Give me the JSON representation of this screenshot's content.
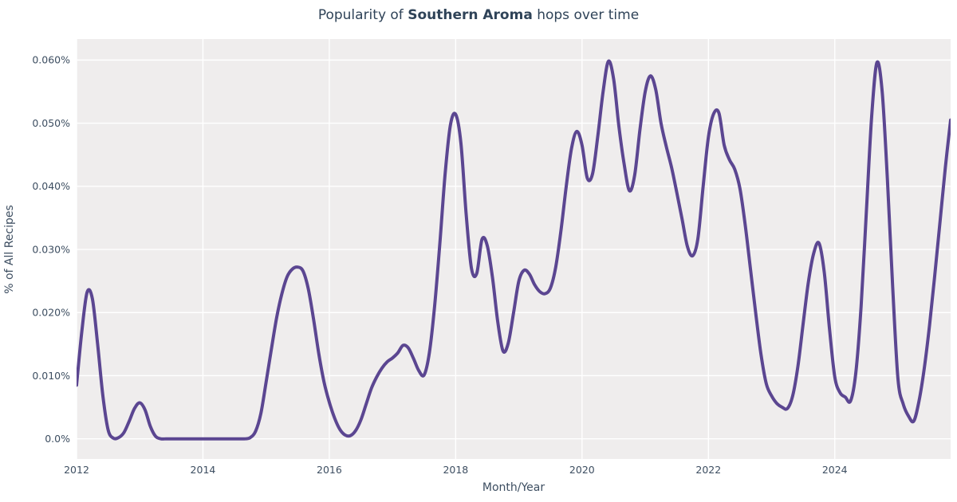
{
  "title": {
    "prefix": "Popularity of ",
    "emphasis": "Southern Aroma",
    "suffix": " hops over time"
  },
  "colors": {
    "line": "#5b4691",
    "plot_bg": "#efeded",
    "grid": "#ffffff",
    "tick_text": "#3d4e61",
    "title_text": "#2f4358",
    "figure_bg": "#ffffff"
  },
  "chart_data": {
    "type": "line",
    "title": "Popularity of Southern Aroma hops over time",
    "xlabel": "Month/Year",
    "ylabel": "% of All Recipes",
    "frequency": "monthly",
    "x_start": "2012-01",
    "x_end": "2025-11",
    "unit": "% of all recipes",
    "grid": true,
    "legend": false,
    "ylim": [
      0,
      0.0625
    ],
    "y_ticks": [
      {
        "value": 0.0,
        "label": "0.0%"
      },
      {
        "value": 0.01,
        "label": "0.010%"
      },
      {
        "value": 0.02,
        "label": "0.020%"
      },
      {
        "value": 0.03,
        "label": "0.030%"
      },
      {
        "value": 0.04,
        "label": "0.040%"
      },
      {
        "value": 0.05,
        "label": "0.050%"
      },
      {
        "value": 0.06,
        "label": "0.060%"
      }
    ],
    "x_ticks": [
      {
        "year": 2012,
        "label": "2012"
      },
      {
        "year": 2014,
        "label": "2014"
      },
      {
        "year": 2016,
        "label": "2016"
      },
      {
        "year": 2018,
        "label": "2018"
      },
      {
        "year": 2020,
        "label": "2020"
      },
      {
        "year": 2022,
        "label": "2022"
      },
      {
        "year": 2024,
        "label": "2024"
      }
    ],
    "values": [
      0.0085,
      0.017,
      0.0232,
      0.0222,
      0.015,
      0.0068,
      0.0014,
      0.0001,
      0.0002,
      0.001,
      0.0028,
      0.0048,
      0.0057,
      0.0046,
      0.002,
      0.0004,
      0.0,
      0.0,
      0.0,
      0.0,
      0.0,
      0.0,
      0.0,
      0.0,
      0.0,
      0.0,
      0.0,
      0.0,
      0.0,
      0.0,
      0.0,
      0.0,
      0.0,
      0.0002,
      0.0012,
      0.004,
      0.009,
      0.0142,
      0.0192,
      0.023,
      0.0257,
      0.0269,
      0.0272,
      0.0266,
      0.0238,
      0.019,
      0.0135,
      0.009,
      0.0058,
      0.0033,
      0.0015,
      0.0006,
      0.0005,
      0.0013,
      0.003,
      0.0055,
      0.008,
      0.0098,
      0.0112,
      0.0122,
      0.0128,
      0.0136,
      0.0148,
      0.0144,
      0.0127,
      0.0108,
      0.0101,
      0.0136,
      0.021,
      0.031,
      0.042,
      0.0497,
      0.0514,
      0.0468,
      0.0355,
      0.027,
      0.0262,
      0.0316,
      0.0306,
      0.0255,
      0.0185,
      0.0139,
      0.0152,
      0.02,
      0.025,
      0.0267,
      0.0261,
      0.0244,
      0.0233,
      0.023,
      0.0239,
      0.0272,
      0.033,
      0.04,
      0.046,
      0.0487,
      0.0465,
      0.0413,
      0.042,
      0.048,
      0.055,
      0.0598,
      0.057,
      0.0495,
      0.0435,
      0.0393,
      0.0418,
      0.049,
      0.055,
      0.0575,
      0.0553,
      0.05,
      0.0463,
      0.043,
      0.039,
      0.0348,
      0.0305,
      0.029,
      0.0317,
      0.04,
      0.0478,
      0.0515,
      0.0516,
      0.0465,
      0.0442,
      0.0427,
      0.0396,
      0.0338,
      0.0268,
      0.0198,
      0.0133,
      0.0087,
      0.0068,
      0.0056,
      0.005,
      0.0048,
      0.0068,
      0.0115,
      0.0183,
      0.0249,
      0.0294,
      0.031,
      0.0264,
      0.0174,
      0.0098,
      0.0073,
      0.0066,
      0.006,
      0.0105,
      0.021,
      0.036,
      0.051,
      0.0596,
      0.055,
      0.041,
      0.024,
      0.0095,
      0.0055,
      0.0036,
      0.0028,
      0.006,
      0.0112,
      0.018,
      0.026,
      0.0345,
      0.043,
      0.0505
    ]
  }
}
